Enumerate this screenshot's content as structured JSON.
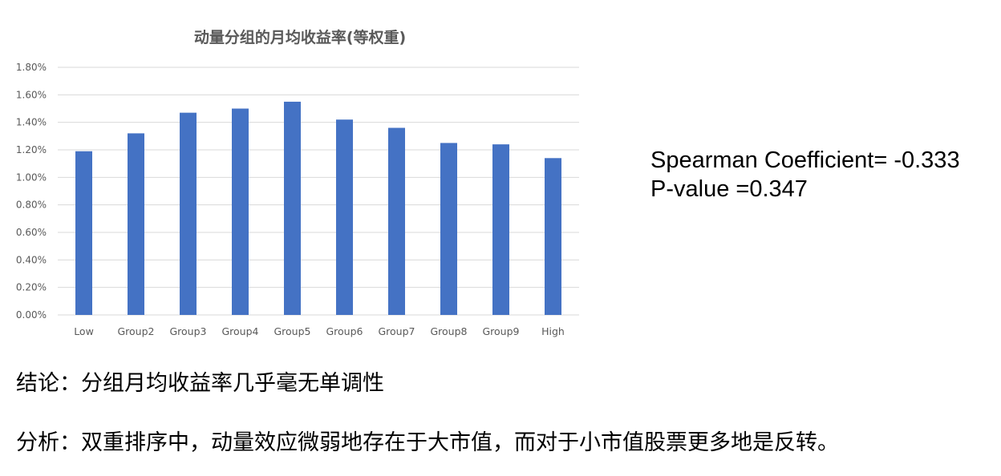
{
  "chart_data": {
    "type": "bar",
    "title": "动量分组的月均收益率(等权重)",
    "categories": [
      "Low",
      "Group2",
      "Group3",
      "Group4",
      "Group5",
      "Group6",
      "Group7",
      "Group8",
      "Group9",
      "High"
    ],
    "values": [
      1.19,
      1.32,
      1.47,
      1.5,
      1.55,
      1.42,
      1.36,
      1.25,
      1.24,
      1.14
    ],
    "unit": "%",
    "ylim": [
      0,
      1.8
    ],
    "yticks": [
      "0.00%",
      "0.20%",
      "0.40%",
      "0.60%",
      "0.80%",
      "1.00%",
      "1.20%",
      "1.40%",
      "1.60%",
      "1.80%"
    ],
    "xlabel": "",
    "ylabel": "",
    "grid": true,
    "legend": "none",
    "bar_color": "#4472C4"
  },
  "stats": {
    "spearman": "Spearman Coefficient= -0.333",
    "pvalue": "P-value =0.347"
  },
  "notes": {
    "conclusion": "结论：分组月均收益率几乎毫无单调性",
    "analysis": "分析：双重排序中，动量效应微弱地存在于大市值，而对于小市值股票更多地是反转。"
  }
}
